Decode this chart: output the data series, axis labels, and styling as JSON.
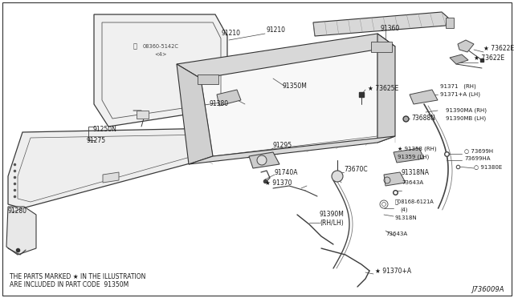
{
  "background_color": "#ffffff",
  "diagram_id": "J736009A",
  "footnote_line1": "THE PARTS MARKED ★ IN THE ILLUSTRATION",
  "footnote_line2": "ARE INCLUDED IN PART CODE  91350M",
  "lc": "#3a3a3a",
  "lw": 0.7
}
